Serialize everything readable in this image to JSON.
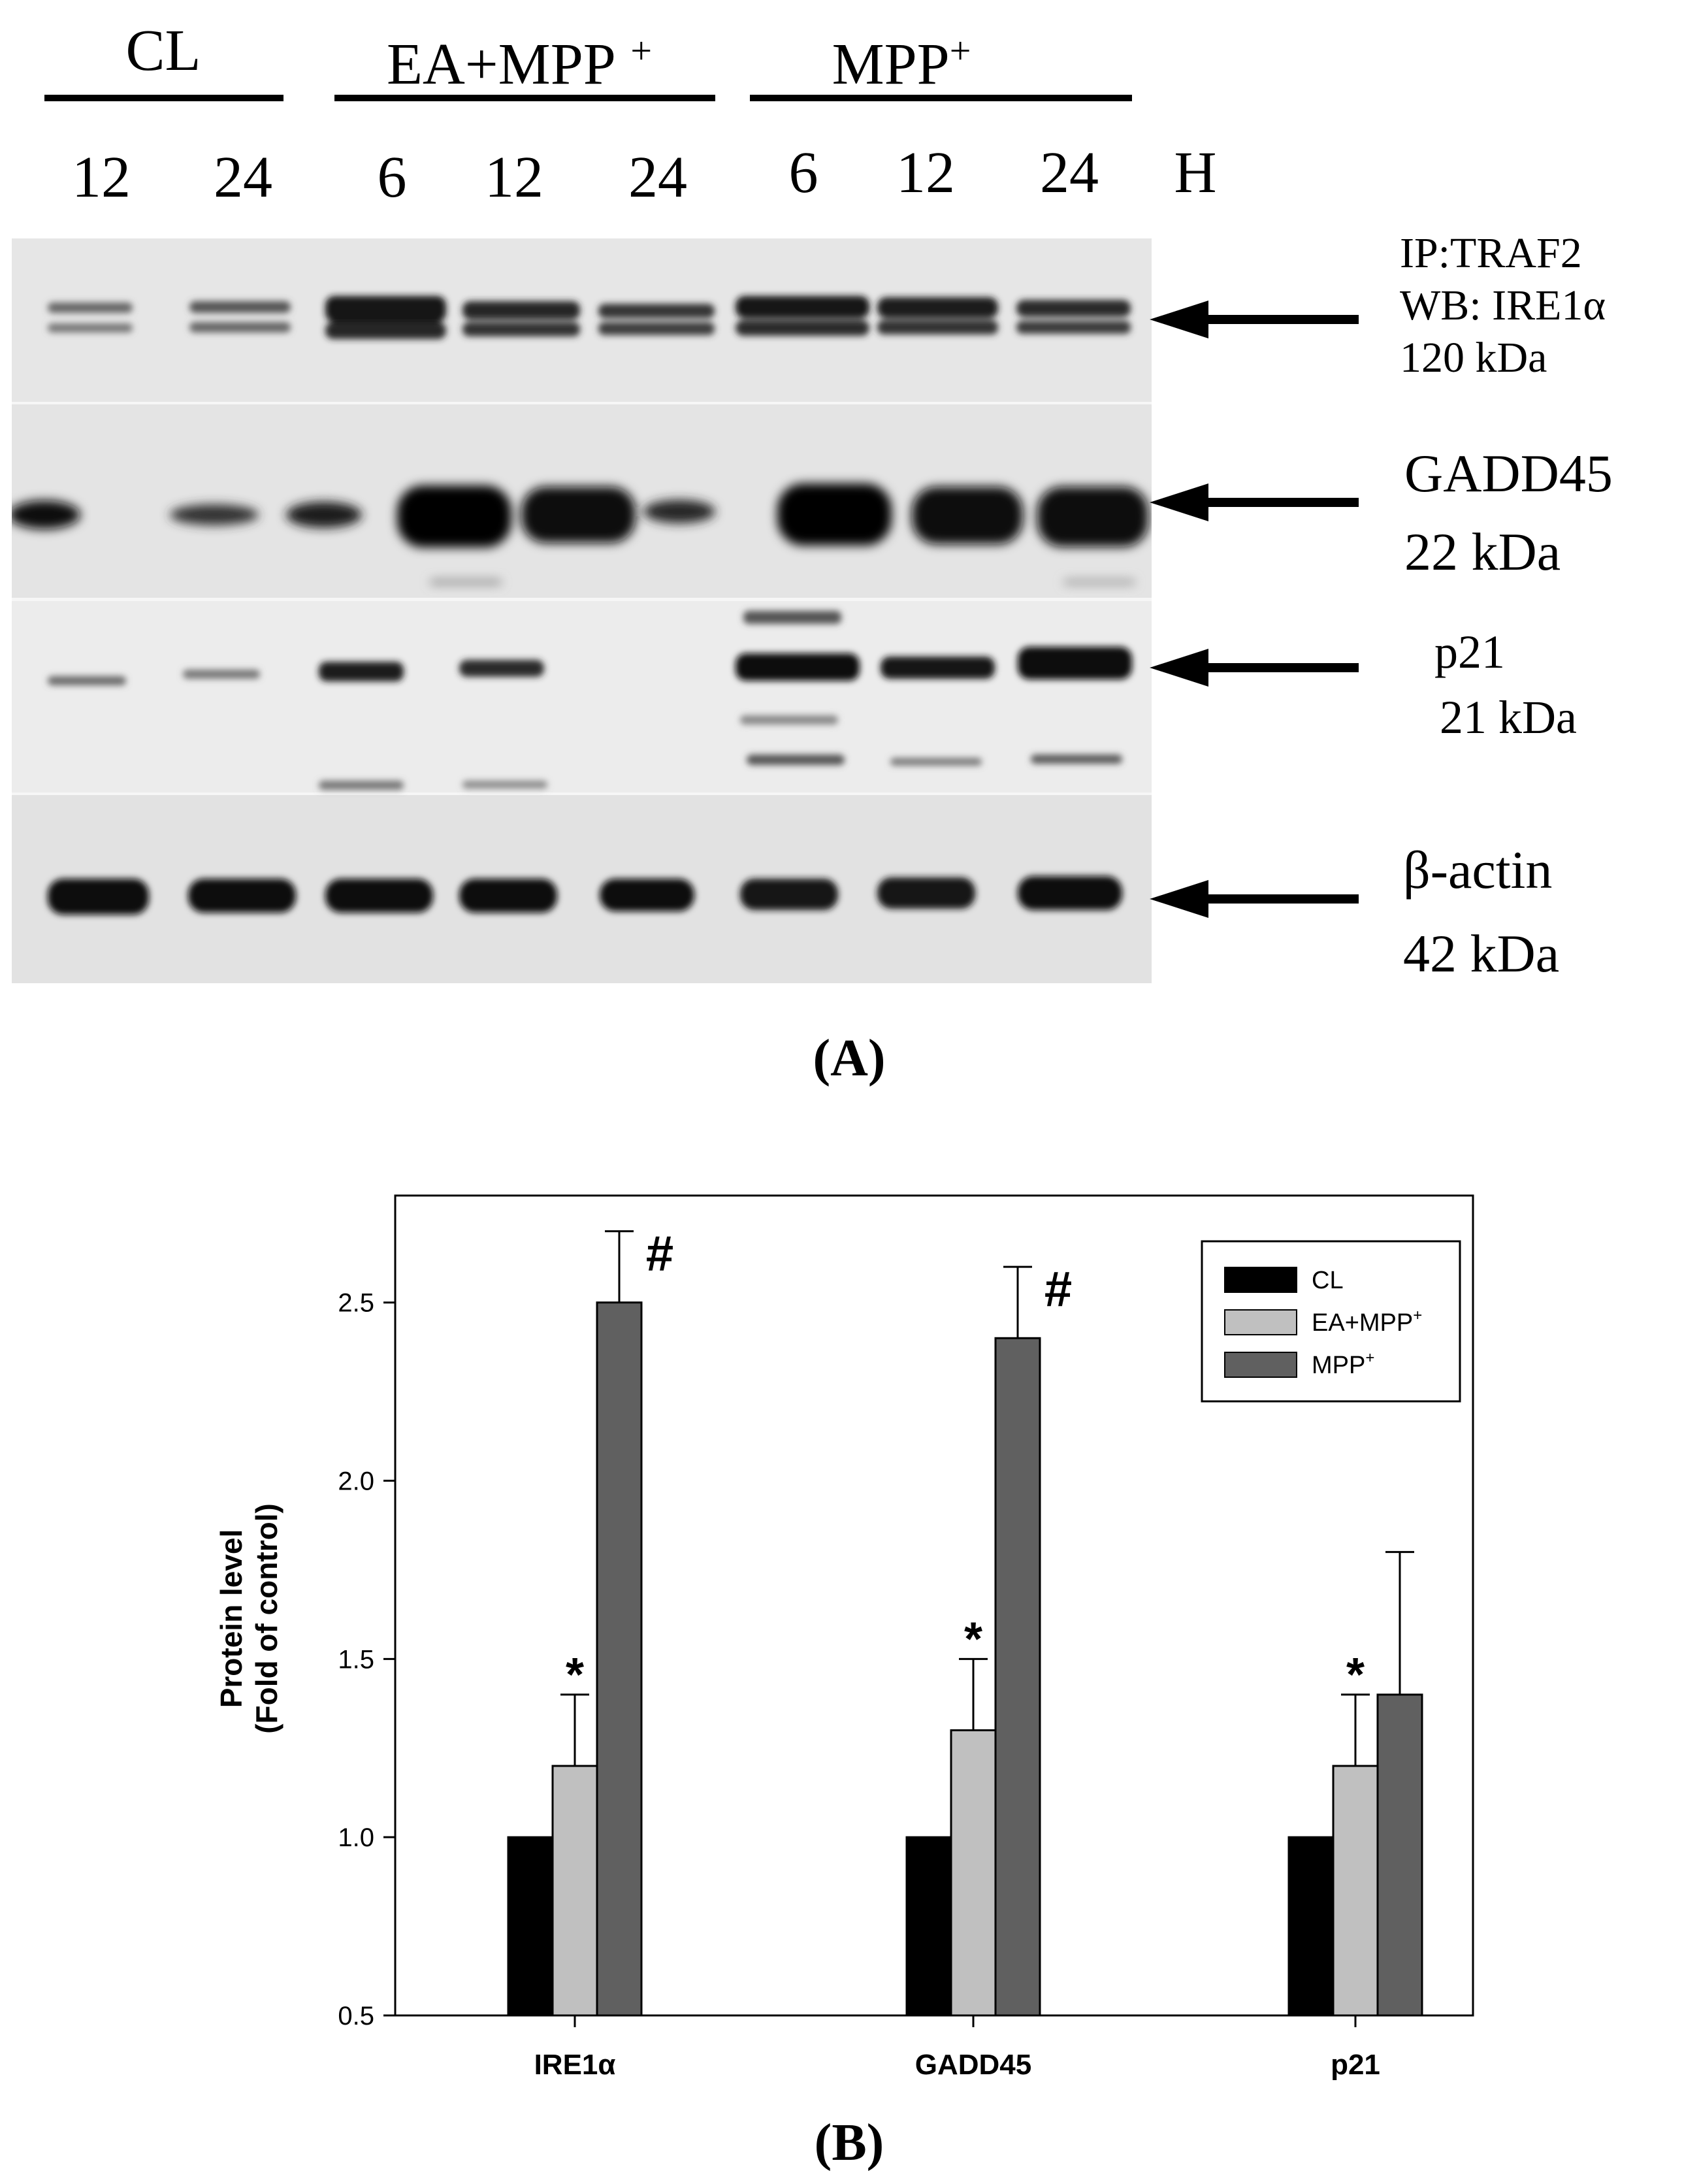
{
  "panel_a": {
    "groups": [
      {
        "label": "CL",
        "times": [
          "12",
          "24"
        ]
      },
      {
        "label": "EA+MPP ",
        "sup": "+",
        "times": [
          "6",
          "12",
          "24"
        ]
      },
      {
        "label": "MPP",
        "sup": "+",
        "times": [
          "6",
          "12",
          "24"
        ]
      }
    ],
    "time_unit": "H",
    "blots": [
      {
        "lines": [
          "IP:TRAF2",
          "WB: IRE1α",
          "120 kDa"
        ]
      },
      {
        "lines": [
          "GADD45",
          "22 kDa"
        ]
      },
      {
        "lines": [
          "p21",
          "21 kDa"
        ]
      },
      {
        "lines": [
          "β-actin",
          "42 kDa"
        ]
      }
    ],
    "panel_label": "(A)"
  },
  "chart_data": {
    "type": "bar",
    "categories": [
      "IRE1α",
      "GADD45",
      "p21"
    ],
    "series": [
      {
        "name": "CL",
        "sup": "",
        "values": [
          1.0,
          1.0,
          1.0
        ],
        "errors": [
          0,
          0,
          0
        ],
        "color": "#000000"
      },
      {
        "name": "EA+MPP",
        "sup": "+",
        "values": [
          1.2,
          1.3,
          1.2
        ],
        "errors": [
          0.2,
          0.2,
          0.2
        ],
        "color": "#c0c0c0"
      },
      {
        "name": "MPP",
        "sup": "+",
        "values": [
          2.5,
          2.4,
          1.4
        ],
        "errors": [
          0.2,
          0.2,
          0.4
        ],
        "color": "#606060"
      }
    ],
    "annotations": [
      {
        "category": 0,
        "series": 1,
        "mark": "*"
      },
      {
        "category": 0,
        "series": 2,
        "mark": "#"
      },
      {
        "category": 1,
        "series": 1,
        "mark": "*"
      },
      {
        "category": 1,
        "series": 2,
        "mark": "#"
      },
      {
        "category": 2,
        "series": 1,
        "mark": "*"
      }
    ],
    "ylabel_lines": [
      "Protein level",
      "(Fold of control)"
    ],
    "xlabel": "",
    "ylim": [
      0.5,
      2.8
    ],
    "yticks": [
      "0.5",
      "1.0",
      "1.5",
      "2.0",
      "2.5"
    ],
    "legend_position": "top-right",
    "grid": false,
    "panel_label": "(B)"
  }
}
